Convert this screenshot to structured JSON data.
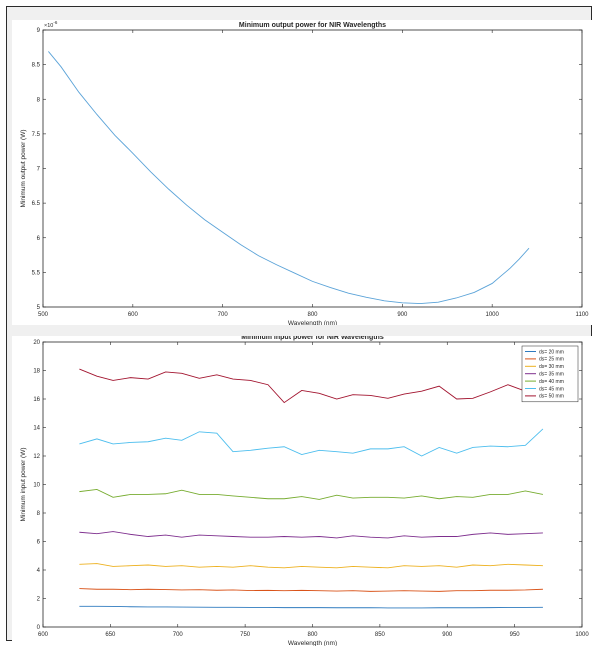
{
  "chart_data": [
    {
      "type": "line",
      "title": "Minimum output power for NIR Wavelengths",
      "xlabel": "Wavelength (nm)",
      "ylabel": "Minimum output power (W)",
      "y_exponent_label": "10",
      "y_exponent_power": "-6",
      "xlim": [
        500,
        1100
      ],
      "ylim": [
        5,
        9
      ],
      "x_ticks": [
        500,
        600,
        700,
        800,
        900,
        1000,
        1100
      ],
      "y_ticks": [
        5,
        5.5,
        6,
        6.5,
        7,
        7.5,
        8,
        8.5,
        9
      ],
      "grid": false,
      "series": [
        {
          "color": "#5ba3d8",
          "x": [
            506,
            520,
            540,
            560,
            580,
            600,
            620,
            640,
            660,
            680,
            700,
            720,
            740,
            760,
            780,
            800,
            820,
            840,
            860,
            880,
            900,
            920,
            940,
            960,
            980,
            1000,
            1010,
            1020,
            1030,
            1041
          ],
          "y": [
            8.69,
            8.47,
            8.1,
            7.78,
            7.48,
            7.22,
            6.95,
            6.7,
            6.47,
            6.26,
            6.08,
            5.9,
            5.74,
            5.61,
            5.49,
            5.37,
            5.28,
            5.2,
            5.14,
            5.09,
            5.06,
            5.05,
            5.07,
            5.13,
            5.21,
            5.34,
            5.45,
            5.56,
            5.69,
            5.85
          ]
        }
      ]
    },
    {
      "type": "line",
      "title": "Minimum input power for NIR Wavelengths",
      "xlabel": "Wavelength (nm)",
      "ylabel": "Minimum input power (W)",
      "xlim": [
        600,
        1000
      ],
      "ylim": [
        0,
        20
      ],
      "x_ticks": [
        600,
        650,
        700,
        750,
        800,
        850,
        900,
        950,
        1000
      ],
      "y_ticks": [
        0,
        2,
        4,
        6,
        8,
        10,
        12,
        14,
        16,
        18,
        20
      ],
      "grid": false,
      "legend_position": "top-right",
      "x": [
        627,
        640,
        652,
        665,
        678,
        691,
        703,
        716,
        729,
        741,
        754,
        767,
        779,
        792,
        805,
        818,
        830,
        843,
        856,
        868,
        881,
        894,
        907,
        919,
        932,
        945,
        958,
        971
      ],
      "series": [
        {
          "name": "ds= 20 mm",
          "color": "#2f7bbf",
          "values": [
            1.45,
            1.45,
            1.44,
            1.42,
            1.41,
            1.41,
            1.4,
            1.39,
            1.38,
            1.38,
            1.37,
            1.37,
            1.36,
            1.36,
            1.36,
            1.35,
            1.35,
            1.35,
            1.34,
            1.34,
            1.34,
            1.35,
            1.35,
            1.35,
            1.36,
            1.37,
            1.37,
            1.38
          ]
        },
        {
          "name": "ds= 25 mm",
          "color": "#d95319",
          "values": [
            2.7,
            2.65,
            2.65,
            2.62,
            2.65,
            2.63,
            2.6,
            2.62,
            2.58,
            2.6,
            2.56,
            2.57,
            2.55,
            2.57,
            2.55,
            2.52,
            2.55,
            2.5,
            2.52,
            2.55,
            2.52,
            2.5,
            2.55,
            2.55,
            2.58,
            2.58,
            2.6,
            2.65
          ]
        },
        {
          "name": "ds= 30 mm",
          "color": "#edb120",
          "values": [
            4.4,
            4.45,
            4.25,
            4.3,
            4.35,
            4.25,
            4.3,
            4.2,
            4.25,
            4.2,
            4.3,
            4.2,
            4.15,
            4.25,
            4.2,
            4.15,
            4.25,
            4.2,
            4.15,
            4.3,
            4.25,
            4.3,
            4.2,
            4.35,
            4.3,
            4.4,
            4.35,
            4.3
          ]
        },
        {
          "name": "ds= 35 mm",
          "color": "#7e2f8e",
          "values": [
            6.65,
            6.55,
            6.7,
            6.5,
            6.35,
            6.45,
            6.3,
            6.45,
            6.4,
            6.35,
            6.3,
            6.3,
            6.35,
            6.3,
            6.35,
            6.25,
            6.4,
            6.3,
            6.25,
            6.4,
            6.3,
            6.35,
            6.35,
            6.5,
            6.6,
            6.5,
            6.55,
            6.6
          ]
        },
        {
          "name": "ds= 40 mm",
          "color": "#77ac30",
          "values": [
            9.5,
            9.65,
            9.1,
            9.3,
            9.3,
            9.35,
            9.6,
            9.3,
            9.3,
            9.2,
            9.1,
            9.0,
            9.0,
            9.15,
            8.95,
            9.25,
            9.05,
            9.1,
            9.1,
            9.05,
            9.2,
            9.0,
            9.15,
            9.1,
            9.3,
            9.3,
            9.55,
            9.3
          ]
        },
        {
          "name": "ds= 45 mm",
          "color": "#4dbeee",
          "values": [
            12.85,
            13.2,
            12.85,
            12.95,
            13.0,
            13.25,
            13.1,
            13.7,
            13.6,
            12.3,
            12.4,
            12.55,
            12.65,
            12.1,
            12.4,
            12.3,
            12.2,
            12.5,
            12.5,
            12.65,
            12.0,
            12.6,
            12.2,
            12.6,
            12.7,
            12.65,
            12.75,
            13.9
          ]
        },
        {
          "name": "ds= 50 mm",
          "color": "#a2142f",
          "values": [
            18.1,
            17.6,
            17.3,
            17.5,
            17.4,
            17.9,
            17.8,
            17.45,
            17.7,
            17.4,
            17.3,
            17.0,
            15.75,
            16.6,
            16.4,
            16.0,
            16.3,
            16.25,
            16.05,
            16.35,
            16.55,
            16.9,
            16.0,
            16.05,
            16.5,
            17.0,
            16.55,
            16.4
          ]
        }
      ]
    }
  ]
}
